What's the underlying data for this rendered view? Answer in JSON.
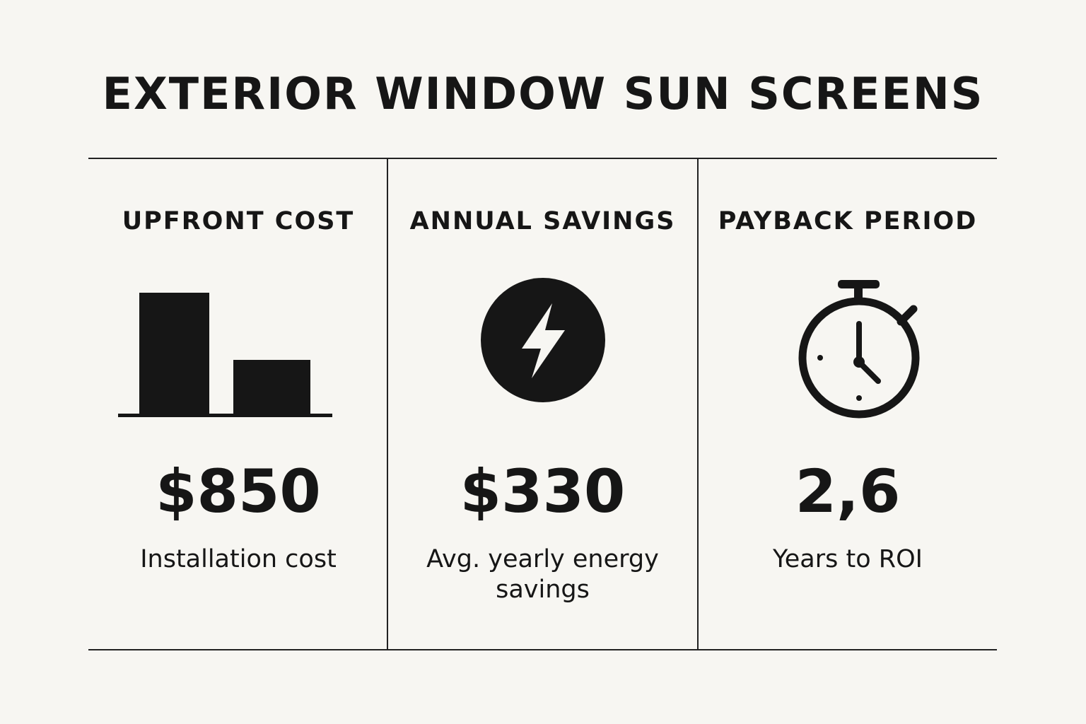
{
  "title": "EXTERIOR WINDOW SUN SCREENS",
  "panels": [
    {
      "heading": "UPFRONT COST",
      "value": "$850",
      "description": "Installation cost",
      "icon": "bar-chart-icon"
    },
    {
      "heading": "ANNUAL SAVINGS",
      "value": "$330",
      "description": "Avg. yearly energy savings",
      "icon": "lightning-bolt-icon"
    },
    {
      "heading": "PAYBACK PERIOD",
      "value": "2,6",
      "description": "Years to ROI",
      "icon": "stopwatch-icon"
    }
  ],
  "colors": {
    "background": "#f7f6f2",
    "ink": "#161616"
  }
}
